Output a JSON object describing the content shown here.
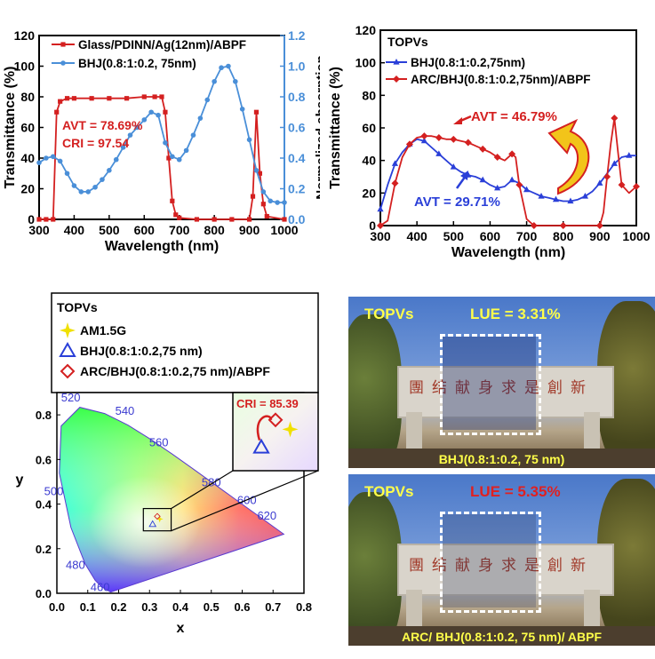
{
  "chart_data": [
    {
      "type": "line",
      "xlabel": "Wavelength (nm)",
      "ylabel": "Transmittance (%)",
      "y2label": "Normalized absorption",
      "xlim": [
        300,
        1000
      ],
      "ylim": [
        0,
        120
      ],
      "y2lim": [
        0,
        1.2
      ],
      "xticks": [
        "300",
        "400",
        "500",
        "600",
        "700",
        "800",
        "900",
        "1000"
      ],
      "yticks": [
        "0",
        "20",
        "40",
        "60",
        "80",
        "100",
        "120"
      ],
      "y2ticks": [
        "0.0",
        "0.2",
        "0.4",
        "0.6",
        "0.8",
        "1.0",
        "1.2"
      ],
      "legend_position": "top-left",
      "annotations": [
        "AVT = 78.69%",
        "CRI = 97.54"
      ],
      "series": [
        {
          "name": "Glass/PDINN/Ag(12nm)/ABPF",
          "axis": "left",
          "color": "#d42020",
          "marker": "square",
          "x": [
            300,
            320,
            340,
            350,
            360,
            380,
            400,
            450,
            500,
            550,
            600,
            630,
            650,
            660,
            670,
            680,
            690,
            700,
            750,
            800,
            850,
            900,
            910,
            920,
            930,
            940,
            950,
            1000
          ],
          "y": [
            0,
            0,
            0,
            70,
            77,
            79,
            79,
            79,
            79,
            79,
            80,
            80,
            80,
            70,
            40,
            12,
            3,
            1,
            0,
            0,
            0,
            0,
            15,
            70,
            30,
            10,
            2,
            0
          ]
        },
        {
          "name": "BHJ(0.8:1:0.2, 75nm)",
          "axis": "right",
          "color": "#4a8fd8",
          "marker": "circle",
          "x": [
            300,
            320,
            340,
            360,
            380,
            400,
            420,
            440,
            460,
            480,
            500,
            520,
            540,
            560,
            580,
            600,
            620,
            640,
            660,
            680,
            700,
            720,
            740,
            760,
            780,
            800,
            820,
            840,
            860,
            880,
            900,
            920,
            940,
            960,
            980,
            1000
          ],
          "y": [
            0.37,
            0.4,
            0.41,
            0.38,
            0.3,
            0.22,
            0.18,
            0.18,
            0.21,
            0.26,
            0.32,
            0.39,
            0.47,
            0.55,
            0.6,
            0.65,
            0.7,
            0.68,
            0.5,
            0.41,
            0.39,
            0.45,
            0.55,
            0.66,
            0.78,
            0.9,
            0.99,
            1.0,
            0.9,
            0.72,
            0.52,
            0.32,
            0.18,
            0.12,
            0.11,
            0.11
          ]
        }
      ]
    },
    {
      "type": "line",
      "xlabel": "Wavelength (nm)",
      "ylabel": "Transmittance (%)",
      "xlim": [
        300,
        1000
      ],
      "ylim": [
        0,
        120
      ],
      "xticks": [
        "300",
        "400",
        "500",
        "600",
        "700",
        "800",
        "900",
        "1000"
      ],
      "yticks": [
        "0",
        "20",
        "40",
        "60",
        "80",
        "100",
        "120"
      ],
      "legend_title": "TOPVs",
      "legend_position": "top-left",
      "annotations": [
        "AVT = 46.79%",
        "AVT = 29.71%"
      ],
      "series": [
        {
          "name": "BHJ(0.8:1:0.2,75nm)",
          "color": "#2a3fd8",
          "marker": "triangle",
          "x": [
            300,
            320,
            340,
            360,
            380,
            400,
            420,
            440,
            460,
            480,
            500,
            520,
            540,
            560,
            580,
            600,
            620,
            640,
            660,
            680,
            700,
            720,
            740,
            760,
            780,
            800,
            820,
            840,
            860,
            880,
            900,
            920,
            940,
            960,
            980,
            1000
          ],
          "y": [
            10,
            25,
            38,
            45,
            50,
            53,
            52,
            48,
            44,
            40,
            36,
            33,
            31,
            30,
            28,
            25,
            23,
            24,
            28,
            26,
            22,
            20,
            18,
            17,
            16,
            15,
            15,
            16,
            18,
            21,
            26,
            32,
            38,
            42,
            43,
            43
          ]
        },
        {
          "name": "ARC/BHJ(0.8:1:0.2,75nm)/ABPF",
          "color": "#d42020",
          "marker": "diamond",
          "x": [
            300,
            320,
            340,
            360,
            380,
            400,
            420,
            440,
            460,
            480,
            500,
            520,
            540,
            560,
            580,
            600,
            620,
            640,
            660,
            670,
            680,
            700,
            720,
            760,
            800,
            850,
            900,
            910,
            920,
            930,
            940,
            950,
            960,
            980,
            1000
          ],
          "y": [
            0,
            3,
            26,
            42,
            50,
            54,
            55,
            55,
            54,
            53,
            53,
            52,
            51,
            49,
            47,
            45,
            42,
            40,
            44,
            42,
            25,
            4,
            0,
            0,
            0,
            0,
            0,
            8,
            30,
            50,
            66,
            45,
            25,
            20,
            24
          ]
        }
      ]
    },
    {
      "type": "scatter",
      "xlabel": "x",
      "ylabel": "y",
      "xlim": [
        0.0,
        0.8
      ],
      "ylim": [
        0.0,
        0.9
      ],
      "xticks": [
        "0.0",
        "0.1",
        "0.2",
        "0.3",
        "0.4",
        "0.5",
        "0.6",
        "0.7",
        "0.8"
      ],
      "yticks": [
        "0.0",
        "0.2",
        "0.4",
        "0.6",
        "0.8"
      ],
      "legend_title": "TOPVs",
      "wavelength_labels": [
        "460",
        "480",
        "500",
        "520",
        "540",
        "560",
        "580",
        "600",
        "620"
      ],
      "inset_annotation": "CRI = 85.39",
      "series": [
        {
          "name": "AM1.5G",
          "color": "#f0e000",
          "marker": "star",
          "x": [
            0.333
          ],
          "y": [
            0.333
          ]
        },
        {
          "name": "BHJ(0.8:1:0.2,75 nm)",
          "color": "#2a3fd8",
          "marker": "triangle",
          "x": [
            0.31
          ],
          "y": [
            0.31
          ]
        },
        {
          "name": "ARC/BHJ(0.8:1:0.2,75 nm)/ABPF",
          "color": "#d42020",
          "marker": "diamond",
          "x": [
            0.325
          ],
          "y": [
            0.345
          ]
        }
      ]
    }
  ],
  "photos": {
    "top": {
      "title": "TOPVs",
      "lue": "LUE = 3.31%",
      "lue_color": "#ffff4a",
      "caption": "BHJ(0.8:1:0.2, 75 nm)"
    },
    "bottom": {
      "title": "TOPVs",
      "lue": "LUE = 5.35%",
      "lue_color": "#e02020",
      "caption": "ARC/ BHJ(0.8:1:0.2, 75 nm)/ ABPF"
    },
    "sign_text": "團结献身求是創新"
  }
}
